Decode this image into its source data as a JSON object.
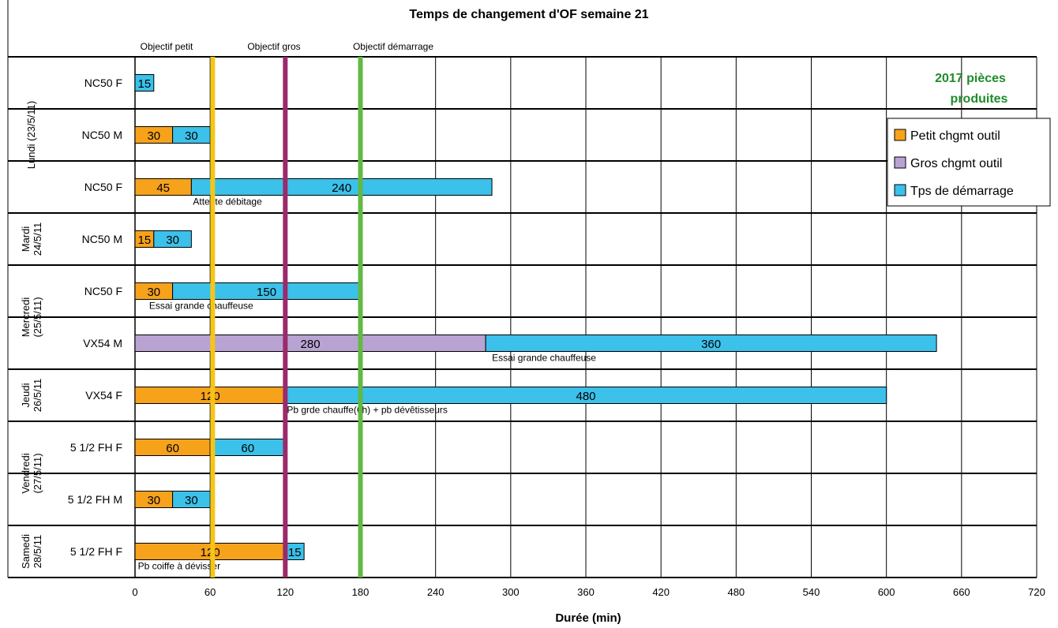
{
  "chart_data": {
    "type": "bar",
    "orientation": "horizontal",
    "stacked": true,
    "title": "Temps de changement d'OF semaine 21",
    "xlabel": "Durée (min)",
    "xlim": [
      0,
      720
    ],
    "xticks": [
      0,
      60,
      120,
      180,
      240,
      300,
      360,
      420,
      480,
      540,
      600,
      660,
      720
    ],
    "grid": true,
    "legend_position": "right",
    "note": "2017 pièces produites",
    "note_color": "#1e8c2a",
    "series": [
      {
        "name": "Petit chgmt outil",
        "color": "#f7a21b"
      },
      {
        "name": "Gros chgmt outil",
        "color": "#b9a3d3"
      },
      {
        "name": "Tps de démarrage",
        "color": "#3bc1ea"
      }
    ],
    "groups": [
      {
        "day_line1": "Lundi (23/5/11)",
        "day_line2": "",
        "rows": 3
      },
      {
        "day_line1": "Mardi",
        "day_line2": "24/5/11",
        "rows": 1
      },
      {
        "day_line1": "Mercredi",
        "day_line2": "(25/5/11)",
        "rows": 2
      },
      {
        "day_line1": "Jeudi",
        "day_line2": "26/5/11",
        "rows": 1
      },
      {
        "day_line1": "Vendredi",
        "day_line2": "(27/5/11)",
        "rows": 2
      },
      {
        "day_line1": "Samedi",
        "day_line2": "28/5/11",
        "rows": 1
      }
    ],
    "rows": [
      {
        "label": "NC50 F",
        "segments": [
          {
            "series": 2,
            "value": 15
          }
        ],
        "annotation": ""
      },
      {
        "label": "NC50 M",
        "segments": [
          {
            "series": 0,
            "value": 30
          },
          {
            "series": 2,
            "value": 30
          }
        ],
        "annotation": ""
      },
      {
        "label": "NC50 F",
        "segments": [
          {
            "series": 0,
            "value": 45
          },
          {
            "series": 2,
            "value": 240
          }
        ],
        "annotation": "Attente débitage"
      },
      {
        "label": "NC50 M",
        "segments": [
          {
            "series": 0,
            "value": 15
          },
          {
            "series": 2,
            "value": 30
          }
        ],
        "annotation": ""
      },
      {
        "label": "NC50 F",
        "segments": [
          {
            "series": 0,
            "value": 30
          },
          {
            "series": 2,
            "value": 150
          }
        ],
        "annotation": "Essai grande chauffeuse"
      },
      {
        "label": "VX54 M",
        "segments": [
          {
            "series": 1,
            "value": 280
          },
          {
            "series": 2,
            "value": 360
          }
        ],
        "annotation": "Essai grande chauffeuse"
      },
      {
        "label": "VX54 F",
        "segments": [
          {
            "series": 0,
            "value": 120
          },
          {
            "series": 2,
            "value": 480
          }
        ],
        "annotation": "Pb grde chauffe(6h) + pb dévêtisseurs"
      },
      {
        "label": "5 1/2 FH F",
        "segments": [
          {
            "series": 0,
            "value": 60
          },
          {
            "series": 2,
            "value": 60
          }
        ],
        "annotation": ""
      },
      {
        "label": "5 1/2 FH M",
        "segments": [
          {
            "series": 0,
            "value": 30
          },
          {
            "series": 2,
            "value": 30
          }
        ],
        "annotation": ""
      },
      {
        "label": "5 1/2 FH F",
        "segments": [
          {
            "series": 0,
            "value": 120
          },
          {
            "series": 2,
            "value": 15
          }
        ],
        "annotation": "Pb coiffe à dévisser"
      }
    ],
    "reference_lines": [
      {
        "label": "Objectif petit",
        "value": 62,
        "color": "#f5c518"
      },
      {
        "label": "Objectif gros",
        "value": 120,
        "color": "#9b2a6b"
      },
      {
        "label": "Objectif démarrage",
        "value": 180,
        "color": "#62b944"
      }
    ]
  }
}
